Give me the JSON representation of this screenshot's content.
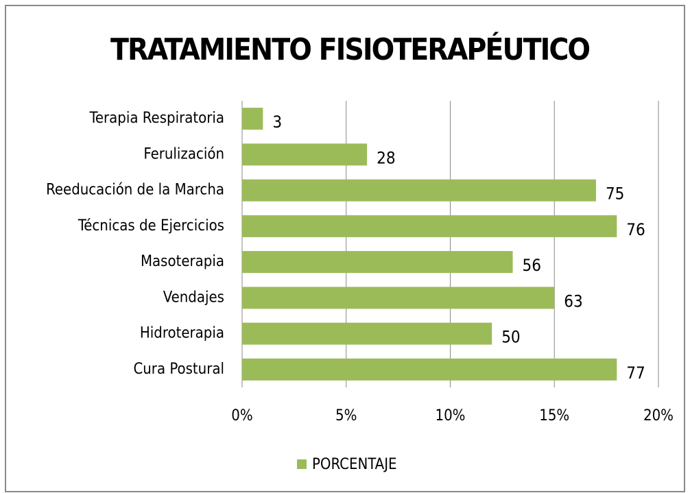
{
  "chart_data": {
    "type": "bar",
    "orientation": "horizontal",
    "title": "TRATAMIENTO FISIOTERAPÉUTICO",
    "categories": [
      "Terapia Respiratoria",
      "Ferulización",
      "Reeducación de la Marcha",
      "Técnicas de Ejercicios",
      "Masoterapia",
      "Vendajes",
      "Hidroterapia",
      "Cura Postural"
    ],
    "series": [
      {
        "name": "PORCENTAJE",
        "color": "#9bbb59",
        "values": [
          1,
          6,
          17,
          18,
          13,
          15,
          12,
          18
        ],
        "labels": [
          3,
          28,
          75,
          76,
          56,
          63,
          50,
          77
        ]
      }
    ],
    "xlim": [
      0,
      20
    ],
    "xticks": [
      {
        "value": 0,
        "label": "0%"
      },
      {
        "value": 5,
        "label": "5%"
      },
      {
        "value": 10,
        "label": "10%"
      },
      {
        "value": 15,
        "label": "15%"
      },
      {
        "value": 20,
        "label": "20%"
      }
    ],
    "grid": true,
    "legend": "bottom"
  }
}
